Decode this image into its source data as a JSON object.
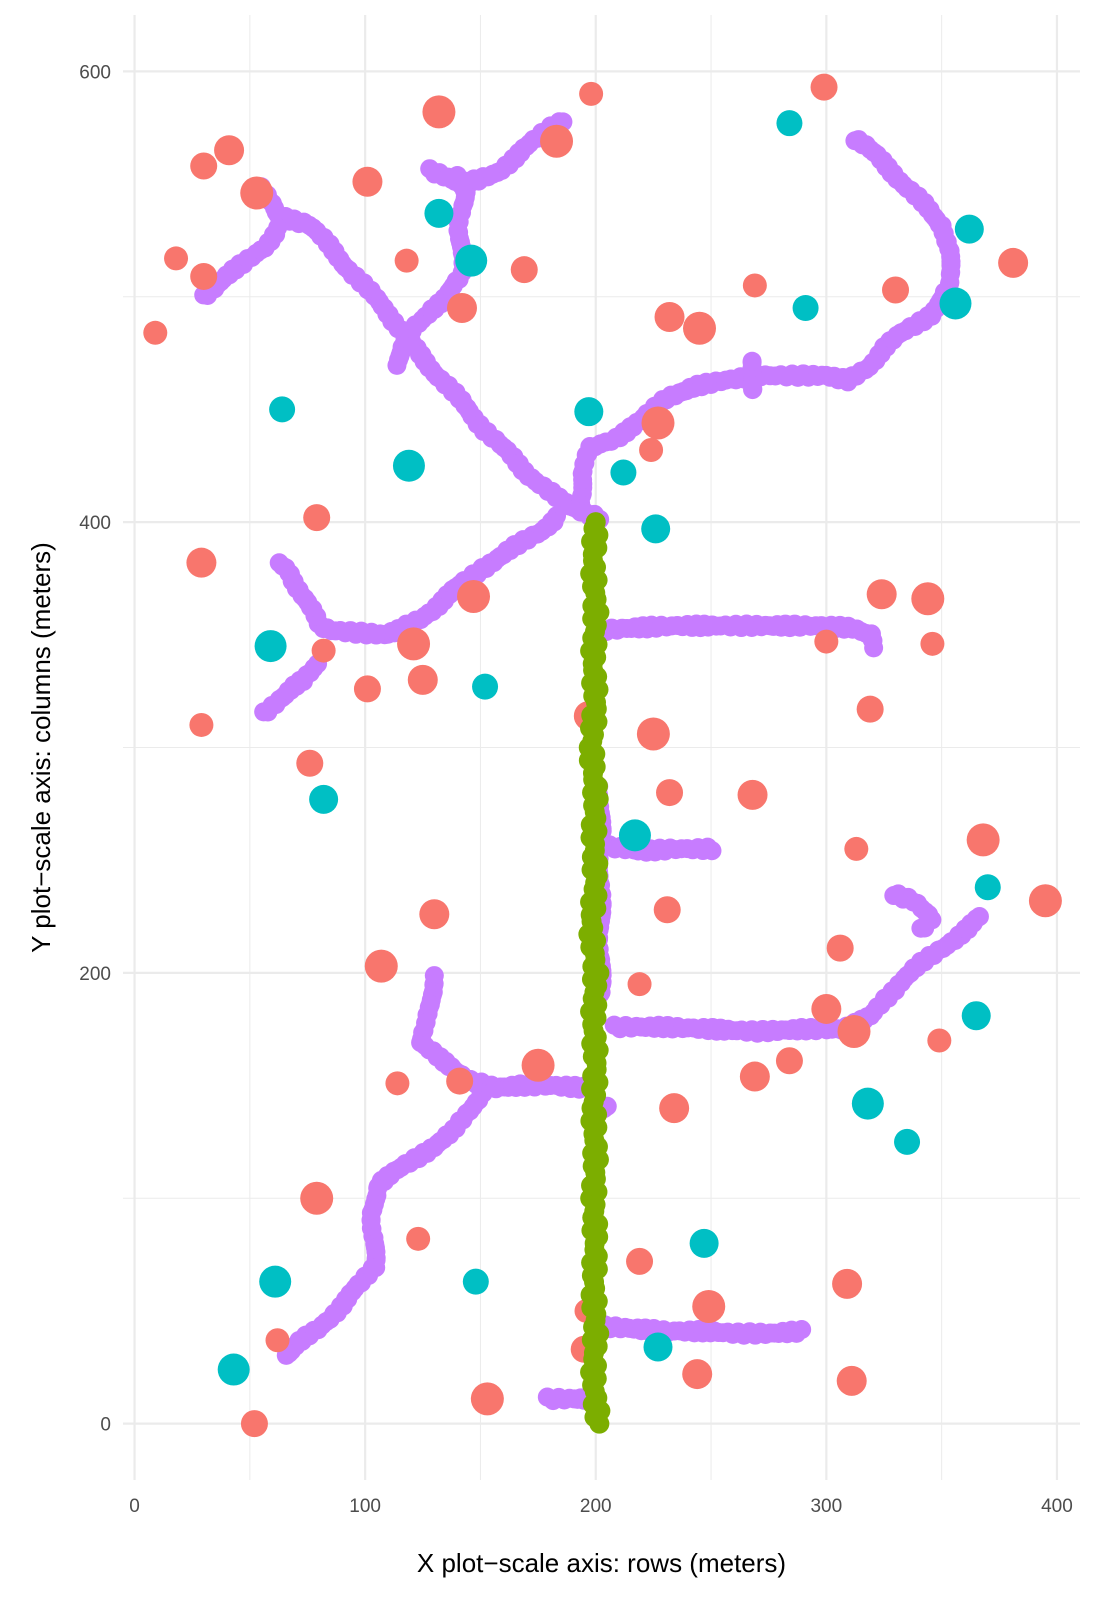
{
  "chart_data": {
    "type": "scatter",
    "title": "",
    "xlabel": "X plot−scale axis: rows (meters)",
    "ylabel": "Y plot−scale axis: columns (meters)",
    "xlim": [
      -5,
      410
    ],
    "ylim": [
      -25,
      625
    ],
    "grid": true,
    "legend": "none",
    "x_ticks": [
      0,
      100,
      200,
      300,
      400
    ],
    "y_ticks": [
      0,
      200,
      400,
      600
    ],
    "x_tick_labels": [
      "0",
      "100",
      "200",
      "300",
      "400"
    ],
    "y_tick_labels": [
      "0",
      "200",
      "400",
      "600"
    ],
    "colors": {
      "red": "#F8766D",
      "cyan": "#00BFC4",
      "purple": "#C77CFF",
      "green": "#7CAE00",
      "grid": "#ebebeb"
    },
    "point_series": [
      {
        "name": "red",
        "color": "#F8766D",
        "points": [
          [
            9,
            484
          ],
          [
            30,
            558
          ],
          [
            41,
            565
          ],
          [
            53,
            546
          ],
          [
            18,
            517
          ],
          [
            30,
            509
          ],
          [
            101,
            551
          ],
          [
            132,
            582
          ],
          [
            118,
            516
          ],
          [
            169,
            512
          ],
          [
            142,
            495
          ],
          [
            183,
            569
          ],
          [
            198,
            590
          ],
          [
            299,
            593
          ],
          [
            232,
            491
          ],
          [
            245,
            486
          ],
          [
            269,
            505
          ],
          [
            330,
            503
          ],
          [
            381,
            515
          ],
          [
            227,
            444
          ],
          [
            224,
            432
          ],
          [
            79,
            402
          ],
          [
            29,
            382
          ],
          [
            147,
            367
          ],
          [
            82,
            343
          ],
          [
            101,
            326
          ],
          [
            125,
            330
          ],
          [
            121,
            346
          ],
          [
            29,
            310
          ],
          [
            76,
            293
          ],
          [
            197,
            314
          ],
          [
            225,
            306
          ],
          [
            300,
            347
          ],
          [
            319,
            317
          ],
          [
            324,
            368
          ],
          [
            344,
            366
          ],
          [
            346,
            346
          ],
          [
            232,
            280
          ],
          [
            268,
            279
          ],
          [
            368,
            259
          ],
          [
            313,
            255
          ],
          [
            231,
            228
          ],
          [
            130,
            226
          ],
          [
            107,
            203
          ],
          [
            219,
            195
          ],
          [
            306,
            211
          ],
          [
            300,
            184
          ],
          [
            312,
            174
          ],
          [
            349,
            170
          ],
          [
            284,
            161
          ],
          [
            269,
            154
          ],
          [
            175,
            159
          ],
          [
            114,
            151
          ],
          [
            141,
            152
          ],
          [
            234,
            140
          ],
          [
            79,
            100
          ],
          [
            123,
            82
          ],
          [
            219,
            72
          ],
          [
            309,
            62
          ],
          [
            249,
            52
          ],
          [
            196,
            50
          ],
          [
            195,
            33
          ],
          [
            244,
            22
          ],
          [
            153,
            11
          ],
          [
            62,
            37
          ],
          [
            52,
            0
          ],
          [
            311,
            19
          ],
          [
            395,
            232
          ]
        ]
      },
      {
        "name": "cyan",
        "color": "#00BFC4",
        "points": [
          [
            284,
            577
          ],
          [
            132,
            537
          ],
          [
            146,
            516
          ],
          [
            291,
            495
          ],
          [
            362,
            530
          ],
          [
            356,
            497
          ],
          [
            64,
            450
          ],
          [
            197,
            449
          ],
          [
            119,
            425
          ],
          [
            212,
            422
          ],
          [
            226,
            397
          ],
          [
            59,
            345
          ],
          [
            152,
            327
          ],
          [
            82,
            277
          ],
          [
            217,
            261
          ],
          [
            370,
            238
          ],
          [
            365,
            181
          ],
          [
            318,
            142
          ],
          [
            335,
            125
          ],
          [
            247,
            80
          ],
          [
            61,
            63
          ],
          [
            148,
            63
          ],
          [
            227,
            34
          ],
          [
            43,
            24
          ]
        ]
      },
      {
        "name": "purple",
        "color": "#C77CFF",
        "paths": [
          [
            [
              55,
              548
            ],
            [
              62,
              536
            ],
            [
              76,
              532
            ],
            [
              95,
              510
            ],
            [
              110,
              493
            ],
            [
              123,
              475
            ],
            [
              136,
              460
            ],
            [
              152,
              441
            ],
            [
              170,
              422
            ],
            [
              185,
              409
            ],
            [
              196,
              404
            ],
            [
              202,
              402
            ]
          ],
          [
            [
              30,
              500
            ],
            [
              38,
              508
            ],
            [
              48,
              515
            ],
            [
              56,
              522
            ],
            [
              62,
              530
            ]
          ],
          [
            [
              140,
              553
            ],
            [
              143,
              546
            ],
            [
              141,
              530
            ],
            [
              142,
              510
            ],
            [
              136,
              500
            ],
            [
              128,
              494
            ],
            [
              122,
              487
            ],
            [
              117,
              479
            ],
            [
              113,
              470
            ]
          ],
          [
            [
              128,
              556
            ],
            [
              137,
              552
            ],
            [
              142,
              550
            ],
            [
              150,
              552
            ],
            [
              157,
              555
            ],
            [
              165,
              562
            ],
            [
              172,
              568
            ],
            [
              180,
              575
            ],
            [
              185,
              578
            ]
          ],
          [
            [
              183,
              402
            ],
            [
              176,
              396
            ],
            [
              162,
              387
            ],
            [
              150,
              379
            ],
            [
              140,
              371
            ],
            [
              130,
              362
            ],
            [
              124,
              357
            ],
            [
              115,
              352
            ],
            [
              108,
              350
            ],
            [
              96,
              351
            ],
            [
              86,
              352
            ],
            [
              80,
              354
            ],
            [
              74,
              366
            ],
            [
              67,
              378
            ],
            [
              62,
              382
            ]
          ],
          [
            [
              56,
              315
            ],
            [
              62,
              321
            ],
            [
              68,
              326
            ],
            [
              74,
              330
            ],
            [
              79,
              337
            ]
          ],
          [
            [
              193,
              407
            ],
            [
              194,
              421
            ],
            [
              198,
              433
            ],
            [
              208,
              437
            ],
            [
              220,
              445
            ],
            [
              230,
              455
            ],
            [
              243,
              460
            ],
            [
              256,
              463
            ],
            [
              270,
              465
            ],
            [
              285,
              465
            ],
            [
              300,
              465
            ],
            [
              310,
              463
            ],
            [
              318,
              469
            ],
            [
              325,
              477
            ],
            [
              333,
              484
            ],
            [
              345,
              492
            ],
            [
              350,
              498
            ],
            [
              354,
              505
            ],
            [
              353,
              520
            ],
            [
              351,
              531
            ],
            [
              342,
              541
            ],
            [
              330,
              554
            ],
            [
              317,
              567
            ],
            [
              313,
              570
            ]
          ],
          [
            [
              268,
              458
            ],
            [
              267,
              467
            ],
            [
              268,
              472
            ]
          ],
          [
            [
              202,
              352
            ],
            [
              215,
              353
            ],
            [
              235,
              354
            ],
            [
              255,
              354
            ],
            [
              275,
              354
            ],
            [
              295,
              354
            ],
            [
              312,
              353
            ],
            [
              320,
              350
            ],
            [
              320,
              345
            ]
          ],
          [
            [
              206,
              256
            ],
            [
              220,
              254
            ],
            [
              235,
              255
            ],
            [
              250,
              255
            ]
          ],
          [
            [
              202,
              190
            ],
            [
              202,
              282
            ]
          ],
          [
            [
              208,
              176
            ],
            [
              230,
              176
            ],
            [
              250,
              175
            ],
            [
              270,
              174
            ],
            [
              290,
              175
            ],
            [
              306,
              175
            ],
            [
              314,
              178
            ],
            [
              320,
              181
            ],
            [
              325,
              188
            ],
            [
              332,
              196
            ],
            [
              340,
              203
            ],
            [
              350,
              211
            ],
            [
              362,
              220
            ],
            [
              367,
              225
            ]
          ],
          [
            [
              341,
              219
            ],
            [
              345,
              224
            ],
            [
              338,
              232
            ],
            [
              330,
              235
            ]
          ],
          [
            [
              130,
              198
            ],
            [
              128,
              188
            ],
            [
              127,
              177
            ],
            [
              124,
              169
            ],
            [
              132,
              162
            ],
            [
              138,
              158
            ],
            [
              146,
              152
            ],
            [
              156,
              149
            ],
            [
              168,
              150
            ],
            [
              180,
              150
            ],
            [
              195,
              149
            ]
          ],
          [
            [
              152,
              149
            ],
            [
              145,
              139
            ],
            [
              139,
              130
            ],
            [
              131,
              124
            ],
            [
              118,
              115
            ],
            [
              105,
              106
            ],
            [
              103,
              93
            ],
            [
              104,
              82
            ],
            [
              104,
              70
            ],
            [
              99,
              63
            ],
            [
              90,
              53
            ],
            [
              80,
              42
            ],
            [
              70,
              35
            ],
            [
              65,
              30
            ]
          ],
          [
            [
              205,
              140
            ],
            [
              198,
              142
            ]
          ],
          [
            [
              204,
              43
            ],
            [
              218,
              42
            ],
            [
              232,
              41
            ],
            [
              248,
              41
            ],
            [
              262,
              40
            ],
            [
              275,
              40
            ],
            [
              290,
              41
            ]
          ],
          [
            [
              179,
              11
            ],
            [
              190,
              11
            ],
            [
              195,
              11
            ]
          ]
        ]
      },
      {
        "name": "green",
        "color": "#7CAE00",
        "path": [
          [
            200,
            400
          ],
          [
            199,
            380
          ],
          [
            200,
            360
          ],
          [
            199,
            340
          ],
          [
            200,
            320
          ],
          [
            198,
            300
          ],
          [
            200,
            280
          ],
          [
            199,
            260
          ],
          [
            200,
            240
          ],
          [
            198,
            220
          ],
          [
            200,
            200
          ],
          [
            199,
            180
          ],
          [
            200,
            160
          ],
          [
            199,
            140
          ],
          [
            200,
            120
          ],
          [
            199,
            100
          ],
          [
            200,
            80
          ],
          [
            199,
            60
          ],
          [
            200,
            40
          ],
          [
            199,
            20
          ],
          [
            201,
            0
          ]
        ]
      }
    ]
  }
}
